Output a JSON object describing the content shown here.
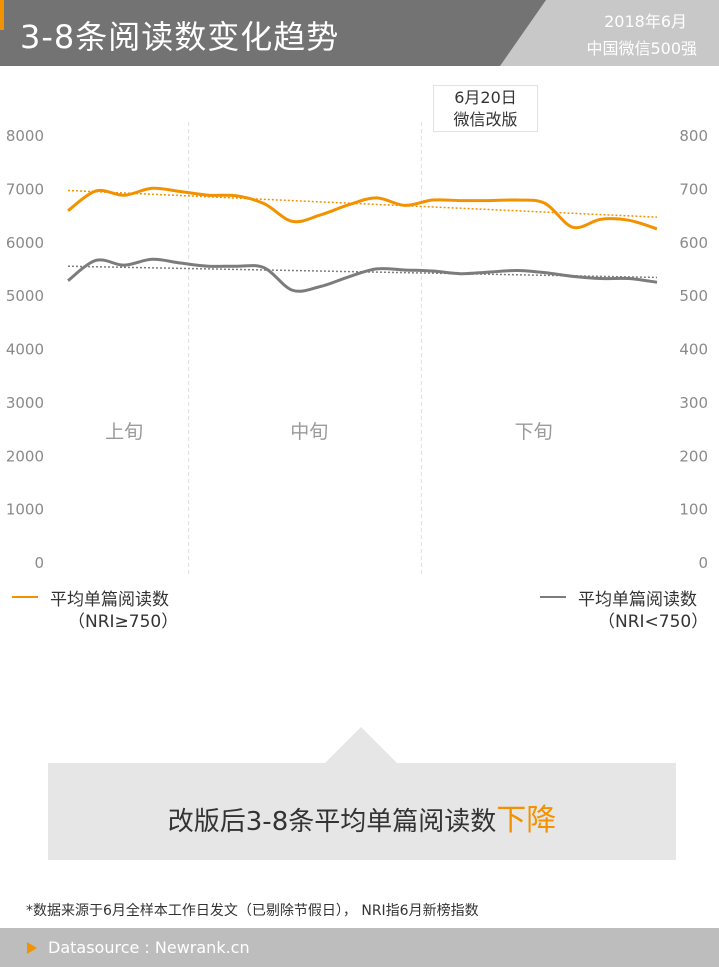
{
  "header": {
    "title": "3-8条阅读数变化趋势",
    "date": "2018年6月",
    "source": "中国微信500强"
  },
  "callout": {
    "line1": "6月20日",
    "line2": "微信改版"
  },
  "periods": [
    "上旬",
    "中旬",
    "下旬"
  ],
  "legend": {
    "left": {
      "line1": "平均单篇阅读数",
      "line2": "（NRI≥750）"
    },
    "right": {
      "line1": "平均单篇阅读数",
      "line2": "（NRI<750）"
    }
  },
  "conclusion": {
    "text": "改版后3-8条平均单篇阅读数",
    "highlight": "下降"
  },
  "footnote": "*数据来源于6月全样本工作日发文（已剔除节假日）， NRI指6月新榜指数",
  "footer": {
    "text": "Datasource : Newrank.cn"
  },
  "colors": {
    "accent": "#f39200",
    "series_gray": "#7c7c7c",
    "header_bg": "#737373",
    "badge_bg": "#c8c8c8"
  },
  "chart_data": {
    "type": "line",
    "title": "",
    "xlabel": "",
    "left_axis": {
      "ticks": [
        0,
        1000,
        2000,
        3000,
        4000,
        5000,
        6000,
        7000,
        8000
      ],
      "ylim": [
        0,
        8000
      ]
    },
    "right_axis": {
      "ticks": [
        0,
        100,
        200,
        300,
        400,
        500,
        600,
        700,
        800
      ],
      "ylim": [
        0,
        800
      ]
    },
    "x": [
      0,
      1,
      2,
      3,
      4,
      5,
      6,
      7,
      8,
      9,
      10,
      11,
      12,
      13,
      14,
      15,
      16,
      17,
      18,
      19,
      20,
      21
    ],
    "series": [
      {
        "name": "平均单篇阅读数（NRI≥750）",
        "axis": "left",
        "color": "#f39200",
        "values": [
          6600,
          6970,
          6890,
          7020,
          6960,
          6890,
          6880,
          6730,
          6400,
          6520,
          6710,
          6840,
          6700,
          6800,
          6790,
          6790,
          6800,
          6740,
          6290,
          6440,
          6420,
          6260
        ],
        "trend": [
          6980,
          6480
        ]
      },
      {
        "name": "平均单篇阅读数（NRI<750）",
        "axis": "right",
        "color": "#7c7c7c",
        "values": [
          529,
          567,
          558,
          569,
          562,
          556,
          556,
          553,
          511,
          518,
          536,
          551,
          549,
          547,
          542,
          545,
          548,
          544,
          537,
          533,
          533,
          526
        ],
        "trend": [
          556,
          535
        ]
      }
    ],
    "annotation": {
      "label": "6月20日 微信改版",
      "x": 12.6
    },
    "period_dividers_x": [
      4.3,
      12.6
    ]
  }
}
